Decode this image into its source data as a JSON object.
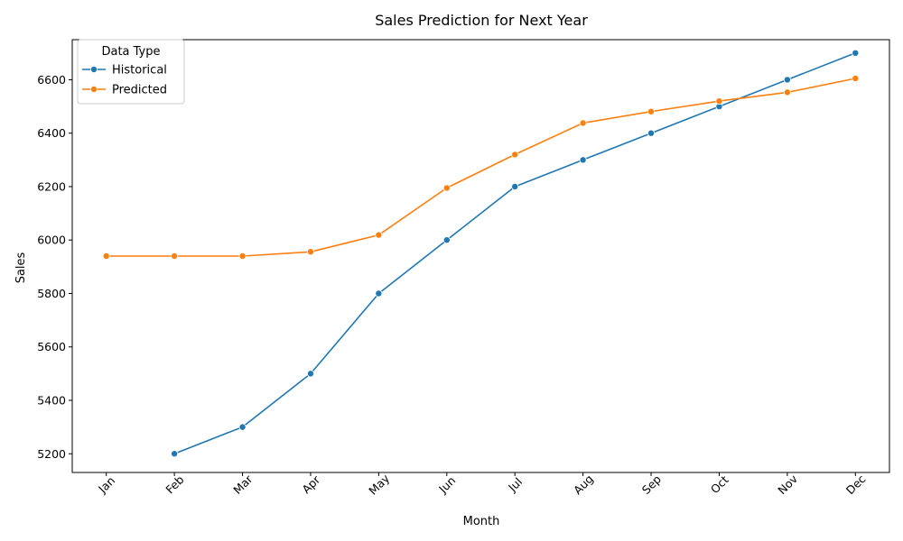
{
  "chart_data": {
    "type": "line",
    "title": "Sales Prediction for Next Year",
    "xlabel": "Month",
    "ylabel": "Sales",
    "categories": [
      "Jan",
      "Feb",
      "Mar",
      "Apr",
      "May",
      "Jun",
      "Jul",
      "Aug",
      "Sep",
      "Oct",
      "Nov",
      "Dec"
    ],
    "ylim": [
      5130,
      6750
    ],
    "yticks": [
      5200,
      5400,
      5600,
      5800,
      6000,
      6200,
      6400,
      6600
    ],
    "grid": false,
    "legend": {
      "title": "Data Type",
      "placement": "top-left"
    },
    "series": [
      {
        "name": "Historical",
        "color": "#1f77b4",
        "values": [
          null,
          5200,
          5300,
          5500,
          5800,
          6000,
          6200,
          6300,
          6400,
          6500,
          6600,
          6700
        ]
      },
      {
        "name": "Predicted",
        "color": "#ff7f0e",
        "values": [
          5940,
          5940,
          5940,
          5956,
          6019,
          6195,
          6320,
          6438,
          6481,
          6520,
          6553,
          6605
        ]
      }
    ]
  }
}
